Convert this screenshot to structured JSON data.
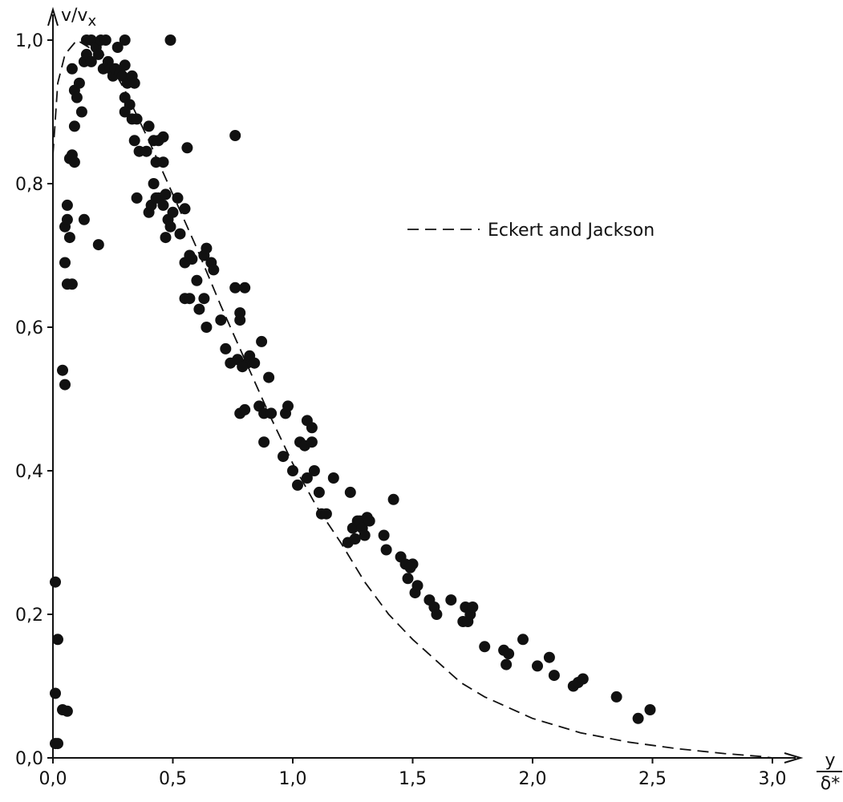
{
  "chart_data": {
    "type": "scatter",
    "title": "",
    "ylabel": "v/v",
    "ylabel_sub": "x",
    "xlabel_num": "y",
    "xlabel_den": "δ*",
    "xlim": [
      0,
      3.1
    ],
    "ylim": [
      0,
      1.0
    ],
    "grid": false,
    "legend": {
      "placement": "upper-right",
      "entries": [
        {
          "label": "Eckert and Jackson",
          "style": "dashed"
        }
      ]
    },
    "x_ticks": [
      {
        "value": 0.0,
        "label": "0,0"
      },
      {
        "value": 0.5,
        "label": "0,5"
      },
      {
        "value": 1.0,
        "label": "1,0"
      },
      {
        "value": 1.5,
        "label": "1,5"
      },
      {
        "value": 2.0,
        "label": "2,0"
      },
      {
        "value": 2.5,
        "label": "2,5"
      },
      {
        "value": 3.0,
        "label": "3,0"
      }
    ],
    "y_ticks": [
      {
        "value": 0.0,
        "label": "0,0"
      },
      {
        "value": 0.2,
        "label": "0,2"
      },
      {
        "value": 0.4,
        "label": "0,4"
      },
      {
        "value": 0.6,
        "label": "0,6"
      },
      {
        "value": 0.8,
        "label": "0,8"
      },
      {
        "value": 1.0,
        "label": "1,0"
      }
    ],
    "series": [
      {
        "type": "scatter",
        "points": [
          [
            0.01,
            0.02
          ],
          [
            0.02,
            0.02
          ],
          [
            0.01,
            0.09
          ],
          [
            0.02,
            0.165
          ],
          [
            0.01,
            0.245
          ],
          [
            0.04,
            0.067
          ],
          [
            0.06,
            0.065
          ],
          [
            0.04,
            0.54
          ],
          [
            0.05,
            0.52
          ],
          [
            0.05,
            0.69
          ],
          [
            0.06,
            0.66
          ],
          [
            0.08,
            0.66
          ],
          [
            0.05,
            0.74
          ],
          [
            0.06,
            0.75
          ],
          [
            0.07,
            0.725
          ],
          [
            0.06,
            0.77
          ],
          [
            0.07,
            0.835
          ],
          [
            0.08,
            0.84
          ],
          [
            0.09,
            0.83
          ],
          [
            0.09,
            0.88
          ],
          [
            0.08,
            0.96
          ],
          [
            0.09,
            0.93
          ],
          [
            0.11,
            0.94
          ],
          [
            0.1,
            0.92
          ],
          [
            0.12,
            0.9
          ],
          [
            0.13,
            0.97
          ],
          [
            0.14,
            0.98
          ],
          [
            0.14,
            1.0
          ],
          [
            0.16,
            1.0
          ],
          [
            0.18,
            0.99
          ],
          [
            0.2,
            1.0
          ],
          [
            0.22,
            1.0
          ],
          [
            0.19,
            0.98
          ],
          [
            0.16,
            0.97
          ],
          [
            0.21,
            0.96
          ],
          [
            0.23,
            0.97
          ],
          [
            0.24,
            0.96
          ],
          [
            0.25,
            0.95
          ],
          [
            0.27,
            0.99
          ],
          [
            0.3,
            1.0
          ],
          [
            0.26,
            0.96
          ],
          [
            0.28,
            0.955
          ],
          [
            0.29,
            0.95
          ],
          [
            0.3,
            0.965
          ],
          [
            0.31,
            0.94
          ],
          [
            0.33,
            0.95
          ],
          [
            0.3,
            0.92
          ],
          [
            0.32,
            0.91
          ],
          [
            0.34,
            0.94
          ],
          [
            0.3,
            0.9
          ],
          [
            0.33,
            0.89
          ],
          [
            0.35,
            0.89
          ],
          [
            0.34,
            0.86
          ],
          [
            0.36,
            0.845
          ],
          [
            0.39,
            0.845
          ],
          [
            0.4,
            0.88
          ],
          [
            0.42,
            0.86
          ],
          [
            0.43,
            0.83
          ],
          [
            0.44,
            0.86
          ],
          [
            0.46,
            0.83
          ],
          [
            0.46,
            0.865
          ],
          [
            0.35,
            0.78
          ],
          [
            0.4,
            0.76
          ],
          [
            0.41,
            0.77
          ],
          [
            0.42,
            0.8
          ],
          [
            0.43,
            0.78
          ],
          [
            0.44,
            0.78
          ],
          [
            0.46,
            0.77
          ],
          [
            0.47,
            0.785
          ],
          [
            0.48,
            0.75
          ],
          [
            0.49,
            0.74
          ],
          [
            0.5,
            0.76
          ],
          [
            0.47,
            0.725
          ],
          [
            0.52,
            0.78
          ],
          [
            0.55,
            0.765
          ],
          [
            0.56,
            0.85
          ],
          [
            0.13,
            0.75
          ],
          [
            0.19,
            0.715
          ],
          [
            0.49,
            1.0
          ],
          [
            0.53,
            0.73
          ],
          [
            0.55,
            0.69
          ],
          [
            0.57,
            0.7
          ],
          [
            0.58,
            0.695
          ],
          [
            0.6,
            0.665
          ],
          [
            0.63,
            0.7
          ],
          [
            0.64,
            0.71
          ],
          [
            0.66,
            0.69
          ],
          [
            0.55,
            0.64
          ],
          [
            0.57,
            0.64
          ],
          [
            0.61,
            0.625
          ],
          [
            0.63,
            0.64
          ],
          [
            0.64,
            0.6
          ],
          [
            0.67,
            0.68
          ],
          [
            0.7,
            0.61
          ],
          [
            0.72,
            0.57
          ],
          [
            0.74,
            0.55
          ],
          [
            0.76,
            0.655
          ],
          [
            0.78,
            0.61
          ],
          [
            0.78,
            0.62
          ],
          [
            0.8,
            0.655
          ],
          [
            0.81,
            0.55
          ],
          [
            0.76,
            0.867
          ],
          [
            0.77,
            0.555
          ],
          [
            0.79,
            0.545
          ],
          [
            0.82,
            0.56
          ],
          [
            0.84,
            0.55
          ],
          [
            0.87,
            0.58
          ],
          [
            0.78,
            0.48
          ],
          [
            0.8,
            0.485
          ],
          [
            0.86,
            0.49
          ],
          [
            0.88,
            0.48
          ],
          [
            0.9,
            0.53
          ],
          [
            0.91,
            0.48
          ],
          [
            0.88,
            0.44
          ],
          [
            0.97,
            0.48
          ],
          [
            0.98,
            0.49
          ],
          [
            0.96,
            0.42
          ],
          [
            1.0,
            0.4
          ],
          [
            1.02,
            0.38
          ],
          [
            1.03,
            0.44
          ],
          [
            1.05,
            0.435
          ],
          [
            1.06,
            0.47
          ],
          [
            1.06,
            0.39
          ],
          [
            1.08,
            0.46
          ],
          [
            1.08,
            0.44
          ],
          [
            1.09,
            0.4
          ],
          [
            1.11,
            0.37
          ],
          [
            1.12,
            0.34
          ],
          [
            1.14,
            0.34
          ],
          [
            1.17,
            0.39
          ],
          [
            1.23,
            0.3
          ],
          [
            1.24,
            0.37
          ],
          [
            1.25,
            0.32
          ],
          [
            1.26,
            0.305
          ],
          [
            1.27,
            0.33
          ],
          [
            1.28,
            0.33
          ],
          [
            1.29,
            0.32
          ],
          [
            1.3,
            0.31
          ],
          [
            1.31,
            0.335
          ],
          [
            1.32,
            0.33
          ],
          [
            1.38,
            0.31
          ],
          [
            1.39,
            0.29
          ],
          [
            1.42,
            0.36
          ],
          [
            1.45,
            0.28
          ],
          [
            1.47,
            0.27
          ],
          [
            1.48,
            0.25
          ],
          [
            1.5,
            0.27
          ],
          [
            1.51,
            0.23
          ],
          [
            1.49,
            0.265
          ],
          [
            1.52,
            0.24
          ],
          [
            1.57,
            0.22
          ],
          [
            1.59,
            0.21
          ],
          [
            1.6,
            0.2
          ],
          [
            1.66,
            0.22
          ],
          [
            1.71,
            0.19
          ],
          [
            1.72,
            0.21
          ],
          [
            1.73,
            0.19
          ],
          [
            1.74,
            0.2
          ],
          [
            1.75,
            0.21
          ],
          [
            1.8,
            0.155
          ],
          [
            1.88,
            0.15
          ],
          [
            1.89,
            0.13
          ],
          [
            1.9,
            0.145
          ],
          [
            1.96,
            0.165
          ],
          [
            2.02,
            0.128
          ],
          [
            2.07,
            0.14
          ],
          [
            2.09,
            0.115
          ],
          [
            2.17,
            0.1
          ],
          [
            2.19,
            0.105
          ],
          [
            2.21,
            0.11
          ],
          [
            2.35,
            0.085
          ],
          [
            2.44,
            0.055
          ],
          [
            2.49,
            0.067
          ]
        ]
      },
      {
        "type": "line",
        "name": "Eckert and Jackson",
        "style": "dashed",
        "points": [
          [
            0.0,
            0.84
          ],
          [
            0.02,
            0.94
          ],
          [
            0.05,
            0.98
          ],
          [
            0.1,
            1.0
          ],
          [
            0.15,
            0.99
          ],
          [
            0.2,
            0.985
          ],
          [
            0.25,
            0.96
          ],
          [
            0.3,
            0.93
          ],
          [
            0.4,
            0.86
          ],
          [
            0.5,
            0.785
          ],
          [
            0.6,
            0.71
          ],
          [
            0.7,
            0.63
          ],
          [
            0.8,
            0.555
          ],
          [
            0.9,
            0.48
          ],
          [
            1.0,
            0.41
          ],
          [
            1.1,
            0.35
          ],
          [
            1.2,
            0.3
          ],
          [
            1.3,
            0.245
          ],
          [
            1.4,
            0.2
          ],
          [
            1.5,
            0.165
          ],
          [
            1.6,
            0.135
          ],
          [
            1.7,
            0.105
          ],
          [
            1.8,
            0.085
          ],
          [
            2.0,
            0.055
          ],
          [
            2.2,
            0.035
          ],
          [
            2.4,
            0.022
          ],
          [
            2.6,
            0.013
          ],
          [
            2.8,
            0.006
          ],
          [
            2.95,
            0.002
          ],
          [
            3.0,
            0.0
          ]
        ]
      }
    ]
  }
}
